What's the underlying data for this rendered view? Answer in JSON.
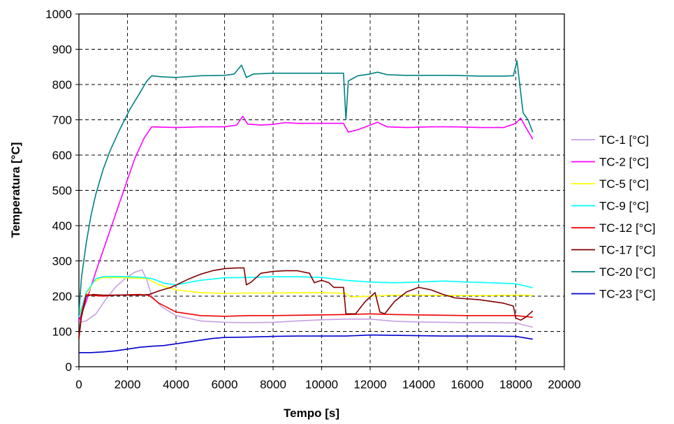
{
  "chart_data": {
    "type": "line",
    "title": "",
    "xlabel": "Tempo [s]",
    "ylabel": "Temperatura [°C]",
    "xlim": [
      0,
      20000
    ],
    "ylim": [
      0,
      1000
    ],
    "xticks": [
      0,
      2000,
      4000,
      6000,
      8000,
      10000,
      12000,
      14000,
      16000,
      18000,
      20000
    ],
    "yticks": [
      0,
      100,
      200,
      300,
      400,
      500,
      600,
      700,
      800,
      900,
      1000
    ],
    "grid": true,
    "grid_style": "dashed",
    "legend_position": "right",
    "series": [
      {
        "name": "TC-1 [°C]",
        "color": "#c8a0e0",
        "points": [
          [
            0,
            125
          ],
          [
            300,
            130
          ],
          [
            700,
            150
          ],
          [
            1100,
            190
          ],
          [
            1500,
            225
          ],
          [
            1900,
            250
          ],
          [
            2300,
            268
          ],
          [
            2600,
            275
          ],
          [
            2800,
            245
          ],
          [
            3000,
            200
          ],
          [
            3400,
            170
          ],
          [
            4000,
            145
          ],
          [
            5000,
            130
          ],
          [
            6000,
            126
          ],
          [
            7000,
            125
          ],
          [
            8000,
            126
          ],
          [
            9000,
            130
          ],
          [
            10000,
            133
          ],
          [
            11000,
            135
          ],
          [
            12000,
            135
          ],
          [
            12500,
            132
          ],
          [
            13000,
            129
          ],
          [
            14000,
            127
          ],
          [
            15000,
            126
          ],
          [
            16000,
            125
          ],
          [
            17000,
            125
          ],
          [
            18000,
            124
          ],
          [
            18700,
            112
          ]
        ]
      },
      {
        "name": "TC-2 [°C]",
        "color": "#ff00ff",
        "points": [
          [
            0,
            130
          ],
          [
            300,
            185
          ],
          [
            700,
            270
          ],
          [
            1100,
            350
          ],
          [
            1500,
            430
          ],
          [
            1900,
            510
          ],
          [
            2300,
            590
          ],
          [
            2700,
            650
          ],
          [
            3000,
            680
          ],
          [
            4000,
            678
          ],
          [
            5000,
            680
          ],
          [
            6000,
            680
          ],
          [
            6500,
            685
          ],
          [
            6750,
            710
          ],
          [
            6950,
            688
          ],
          [
            7500,
            685
          ],
          [
            8000,
            687
          ],
          [
            8500,
            692
          ],
          [
            9000,
            690
          ],
          [
            10000,
            690
          ],
          [
            10900,
            690
          ],
          [
            11100,
            665
          ],
          [
            11500,
            672
          ],
          [
            12000,
            685
          ],
          [
            12300,
            693
          ],
          [
            12700,
            680
          ],
          [
            13500,
            678
          ],
          [
            14500,
            680
          ],
          [
            15500,
            680
          ],
          [
            16500,
            678
          ],
          [
            17500,
            678
          ],
          [
            18000,
            690
          ],
          [
            18200,
            705
          ],
          [
            18400,
            680
          ],
          [
            18700,
            645
          ]
        ]
      },
      {
        "name": "TC-5 [°C]",
        "color": "#ffff00",
        "points": [
          [
            0,
            150
          ],
          [
            300,
            200
          ],
          [
            600,
            240
          ],
          [
            900,
            252
          ],
          [
            1500,
            253
          ],
          [
            2000,
            252
          ],
          [
            2800,
            250
          ],
          [
            3300,
            232
          ],
          [
            4000,
            218
          ],
          [
            5000,
            210
          ],
          [
            6000,
            208
          ],
          [
            7000,
            209
          ],
          [
            8000,
            209
          ],
          [
            9000,
            210
          ],
          [
            10000,
            210
          ],
          [
            11000,
            208
          ],
          [
            11200,
            198
          ],
          [
            12000,
            200
          ],
          [
            13000,
            203
          ],
          [
            14000,
            203
          ],
          [
            15000,
            202
          ],
          [
            16000,
            202
          ],
          [
            17000,
            202
          ],
          [
            18000,
            203
          ],
          [
            18700,
            202
          ]
        ]
      },
      {
        "name": "TC-9 [°C]",
        "color": "#00ffff",
        "points": [
          [
            0,
            140
          ],
          [
            300,
            210
          ],
          [
            700,
            250
          ],
          [
            1000,
            255
          ],
          [
            1500,
            256
          ],
          [
            2000,
            255
          ],
          [
            2500,
            254
          ],
          [
            3000,
            250
          ],
          [
            3500,
            237
          ],
          [
            4000,
            232
          ],
          [
            5000,
            245
          ],
          [
            6000,
            252
          ],
          [
            7000,
            253
          ],
          [
            8000,
            255
          ],
          [
            9000,
            255
          ],
          [
            10000,
            253
          ],
          [
            11000,
            245
          ],
          [
            12000,
            240
          ],
          [
            13000,
            238
          ],
          [
            14000,
            240
          ],
          [
            15000,
            243
          ],
          [
            16000,
            240
          ],
          [
            17000,
            238
          ],
          [
            18000,
            235
          ],
          [
            18700,
            224
          ]
        ]
      },
      {
        "name": "TC-12 [°C]",
        "color": "#ee0000",
        "points": [
          [
            0,
            80
          ],
          [
            100,
            150
          ],
          [
            300,
            205
          ],
          [
            600,
            202
          ],
          [
            1000,
            200
          ],
          [
            1500,
            203
          ],
          [
            2000,
            204
          ],
          [
            2500,
            205
          ],
          [
            2900,
            202
          ],
          [
            3300,
            180
          ],
          [
            4000,
            155
          ],
          [
            5000,
            145
          ],
          [
            6000,
            143
          ],
          [
            7000,
            145
          ],
          [
            8000,
            145
          ],
          [
            9000,
            146
          ],
          [
            10000,
            147
          ],
          [
            11000,
            148
          ],
          [
            12000,
            150
          ],
          [
            13000,
            148
          ],
          [
            14000,
            147
          ],
          [
            15000,
            146
          ],
          [
            16000,
            145
          ],
          [
            17000,
            145
          ],
          [
            18000,
            145
          ],
          [
            18700,
            140
          ]
        ]
      },
      {
        "name": "TC-17 [°C]",
        "color": "#800000",
        "points": [
          [
            0,
            80
          ],
          [
            100,
            140
          ],
          [
            300,
            200
          ],
          [
            600,
            205
          ],
          [
            1000,
            203
          ],
          [
            1500,
            203
          ],
          [
            2000,
            203
          ],
          [
            2500,
            203
          ],
          [
            2900,
            205
          ],
          [
            3300,
            215
          ],
          [
            3800,
            225
          ],
          [
            4500,
            248
          ],
          [
            5000,
            262
          ],
          [
            5500,
            272
          ],
          [
            6000,
            278
          ],
          [
            6500,
            280
          ],
          [
            6800,
            280
          ],
          [
            6900,
            232
          ],
          [
            7100,
            240
          ],
          [
            7500,
            265
          ],
          [
            8000,
            270
          ],
          [
            8500,
            272
          ],
          [
            9000,
            272
          ],
          [
            9500,
            265
          ],
          [
            9700,
            238
          ],
          [
            10000,
            245
          ],
          [
            10300,
            238
          ],
          [
            10500,
            225
          ],
          [
            10900,
            225
          ],
          [
            11000,
            150
          ],
          [
            11400,
            150
          ],
          [
            11800,
            185
          ],
          [
            12200,
            210
          ],
          [
            12400,
            155
          ],
          [
            12600,
            150
          ],
          [
            13000,
            185
          ],
          [
            13500,
            212
          ],
          [
            14000,
            225
          ],
          [
            14500,
            218
          ],
          [
            15000,
            205
          ],
          [
            15500,
            195
          ],
          [
            16500,
            190
          ],
          [
            17500,
            180
          ],
          [
            17900,
            172
          ],
          [
            18000,
            138
          ],
          [
            18200,
            132
          ],
          [
            18400,
            140
          ],
          [
            18700,
            158
          ]
        ]
      },
      {
        "name": "TC-20 [°C]",
        "color": "#008080",
        "points": [
          [
            0,
            150
          ],
          [
            100,
            250
          ],
          [
            300,
            350
          ],
          [
            500,
            430
          ],
          [
            700,
            490
          ],
          [
            1000,
            560
          ],
          [
            1300,
            615
          ],
          [
            1700,
            675
          ],
          [
            2100,
            730
          ],
          [
            2500,
            775
          ],
          [
            2800,
            810
          ],
          [
            3000,
            825
          ],
          [
            3400,
            822
          ],
          [
            4000,
            820
          ],
          [
            5000,
            825
          ],
          [
            6000,
            826
          ],
          [
            6400,
            830
          ],
          [
            6700,
            855
          ],
          [
            6900,
            820
          ],
          [
            7200,
            830
          ],
          [
            8000,
            832
          ],
          [
            9000,
            832
          ],
          [
            10000,
            832
          ],
          [
            10900,
            832
          ],
          [
            11000,
            700
          ],
          [
            11100,
            810
          ],
          [
            11500,
            825
          ],
          [
            12000,
            830
          ],
          [
            12300,
            835
          ],
          [
            12700,
            828
          ],
          [
            13500,
            826
          ],
          [
            14500,
            826
          ],
          [
            15500,
            826
          ],
          [
            16500,
            824
          ],
          [
            17500,
            824
          ],
          [
            17900,
            825
          ],
          [
            18050,
            867
          ],
          [
            18300,
            720
          ],
          [
            18500,
            700
          ],
          [
            18700,
            665
          ]
        ]
      },
      {
        "name": "TC-23 [°C]",
        "color": "#0000cc",
        "points": [
          [
            0,
            40
          ],
          [
            500,
            40
          ],
          [
            1000,
            42
          ],
          [
            1500,
            45
          ],
          [
            2000,
            50
          ],
          [
            2500,
            55
          ],
          [
            3000,
            58
          ],
          [
            3500,
            60
          ],
          [
            4000,
            65
          ],
          [
            4500,
            70
          ],
          [
            5000,
            75
          ],
          [
            5500,
            80
          ],
          [
            6000,
            83
          ],
          [
            7000,
            84
          ],
          [
            8000,
            86
          ],
          [
            9000,
            87
          ],
          [
            10000,
            87
          ],
          [
            11000,
            87
          ],
          [
            12000,
            90
          ],
          [
            13000,
            89
          ],
          [
            14000,
            88
          ],
          [
            15000,
            87
          ],
          [
            16000,
            87
          ],
          [
            17000,
            87
          ],
          [
            18000,
            86
          ],
          [
            18700,
            78
          ]
        ]
      }
    ]
  }
}
